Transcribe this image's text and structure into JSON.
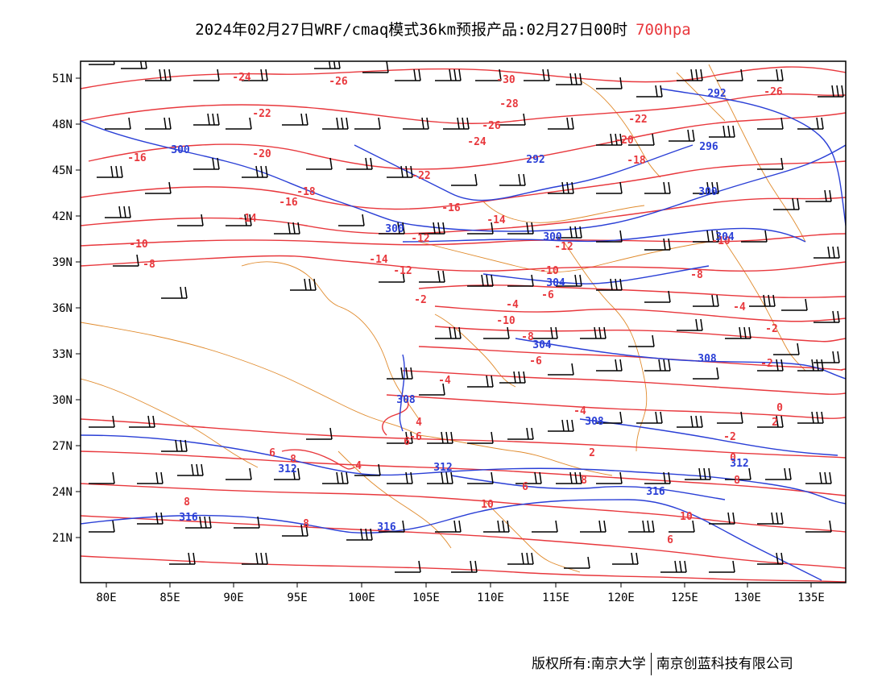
{
  "title": {
    "main": "2024年02月27日WRF/cmaq模式36km预报产品:02月27日00时",
    "level": "700hpa"
  },
  "axes": {
    "lat_labels": [
      "51N",
      "48N",
      "45N",
      "42N",
      "39N",
      "36N",
      "33N",
      "30N",
      "27N",
      "24N",
      "21N"
    ],
    "lon_labels": [
      "80E",
      "85E",
      "90E",
      "95E",
      "100E",
      "105E",
      "110E",
      "115E",
      "120E",
      "125E",
      "130E",
      "135E"
    ]
  },
  "colors": {
    "temperature": "#e8383d",
    "height": "#2a3fd6",
    "border": "#e08a2c",
    "barb": "#000000"
  },
  "temperature_labels": [
    "-24",
    "-26",
    "-30",
    "-26",
    "-22",
    "-28",
    "-26",
    "-24",
    "-22",
    "-20",
    "-18",
    "-16",
    "-20",
    "-22",
    "-18",
    "-16",
    "-16",
    "-14",
    "-14",
    "-12",
    "-12",
    "-10",
    "-10",
    "-14",
    "-12",
    "-10",
    "-8",
    "-8",
    "-6",
    "-4",
    "-2",
    "-4",
    "-2",
    "-10",
    "-8",
    "-6",
    "-4",
    "-2",
    "0",
    "2",
    "4",
    "6",
    "-6",
    "-4",
    "-2",
    "0",
    "2",
    "4",
    "6",
    "8",
    "8",
    "6",
    "8",
    "10",
    "8",
    "8",
    "10",
    "6"
  ],
  "height_labels": [
    "300",
    "292",
    "296",
    "300",
    "300",
    "300",
    "304",
    "304",
    "308",
    "308",
    "308",
    "312",
    "312",
    "312",
    "316",
    "316",
    "316",
    "292",
    "304"
  ],
  "footer": {
    "left": "版权所有:南京大学",
    "right": "南京创蓝科技有限公司"
  }
}
